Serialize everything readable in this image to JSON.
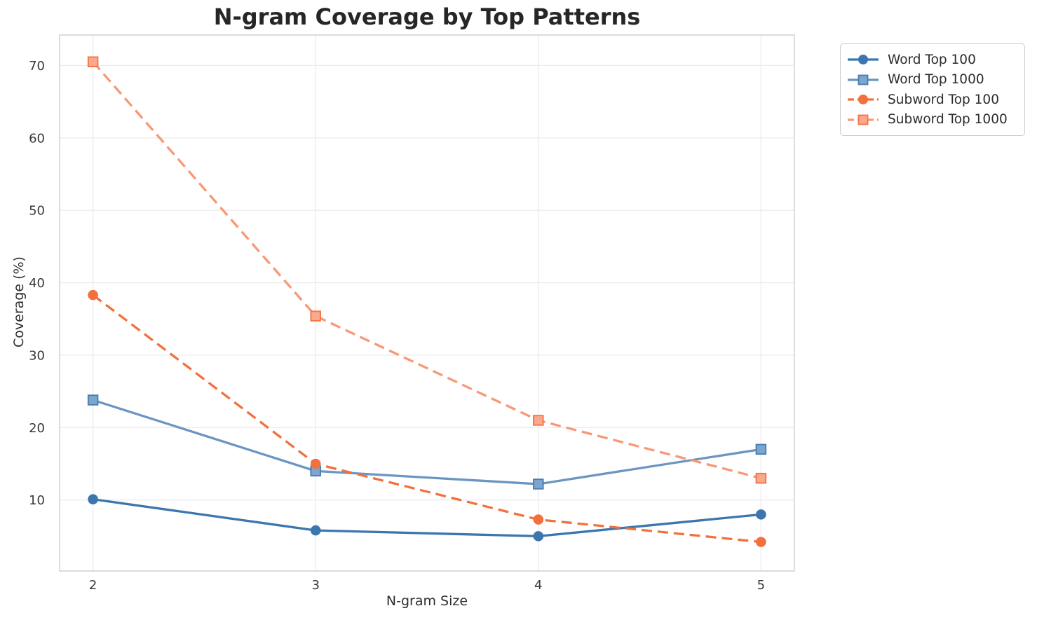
{
  "chart_data": {
    "type": "line",
    "title": "N-gram Coverage by Top Patterns",
    "xlabel": "N-gram Size",
    "ylabel": "Coverage (%)",
    "x": [
      2,
      3,
      4,
      5
    ],
    "x_ticks": [
      "2",
      "3",
      "4",
      "5"
    ],
    "y_ticks": [
      10,
      20,
      30,
      40,
      50,
      60,
      70
    ],
    "xlim": [
      1.85,
      5.15
    ],
    "ylim": [
      0.2,
      74.2
    ],
    "grid": true,
    "legend_position": "outside-upper-right",
    "series": [
      {
        "name": "Word Top 100",
        "marker": "circle",
        "line_style": "solid",
        "color": "#3b76af",
        "marker_fill": "#3b76af",
        "marker_edge": "#2e5f90",
        "values": [
          10.1,
          5.8,
          5.0,
          8.0
        ]
      },
      {
        "name": "Word Top 1000",
        "marker": "square",
        "line_style": "solid",
        "color": "#6b95c2",
        "marker_fill": "#7da6cf",
        "marker_edge": "#4a7db2",
        "values": [
          23.8,
          14.0,
          12.2,
          17.0
        ]
      },
      {
        "name": "Subword Top 100",
        "marker": "circle",
        "line_style": "dashed",
        "color": "#f2703d",
        "marker_fill": "#f2703d",
        "marker_edge": "#d85a2a",
        "values": [
          38.3,
          15.0,
          7.3,
          4.2
        ]
      },
      {
        "name": "Subword Top 1000",
        "marker": "square",
        "line_style": "dashed",
        "color": "#f89877",
        "marker_fill": "#faa98c",
        "marker_edge": "#f3764a",
        "values": [
          70.5,
          35.4,
          21.0,
          13.0
        ]
      }
    ],
    "style": {
      "grid_color": "#ededed",
      "spine_color": "#d0d0d0",
      "background": "#ffffff"
    }
  }
}
